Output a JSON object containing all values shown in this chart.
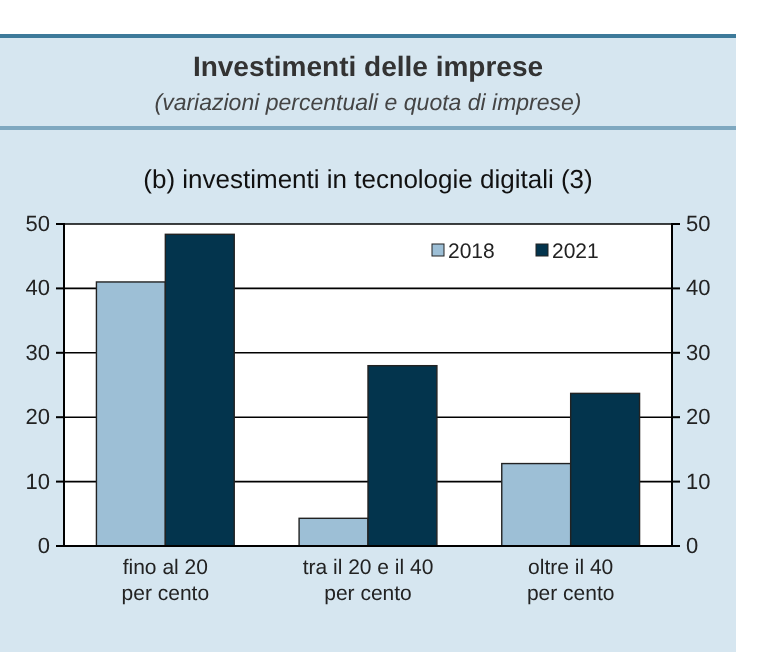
{
  "chart_data": {
    "type": "bar",
    "title": "Investimenti delle imprese",
    "subtitle": "(variazioni percentuali e quota di imprese)",
    "annotations": [
      "(b) investimenti in tecnologie digitali (3)"
    ],
    "categories": [
      "fino al 20\nper cento",
      "tra il 20 e il 40\nper cento",
      "oltre il 40\nper cento"
    ],
    "series": [
      {
        "name": "2018",
        "color": "#9dbfd6",
        "values": [
          41,
          4.3,
          12.8
        ]
      },
      {
        "name": "2021",
        "color": "#03344d",
        "values": [
          48.4,
          28,
          23.7
        ]
      }
    ],
    "ylim": [
      0,
      50
    ],
    "yticks": [
      0,
      10,
      20,
      30,
      40,
      50
    ],
    "y2lim": [
      0,
      50
    ],
    "y2ticks": [
      0,
      10,
      20,
      30,
      40,
      50
    ],
    "grid": "y",
    "legend": "top right"
  }
}
